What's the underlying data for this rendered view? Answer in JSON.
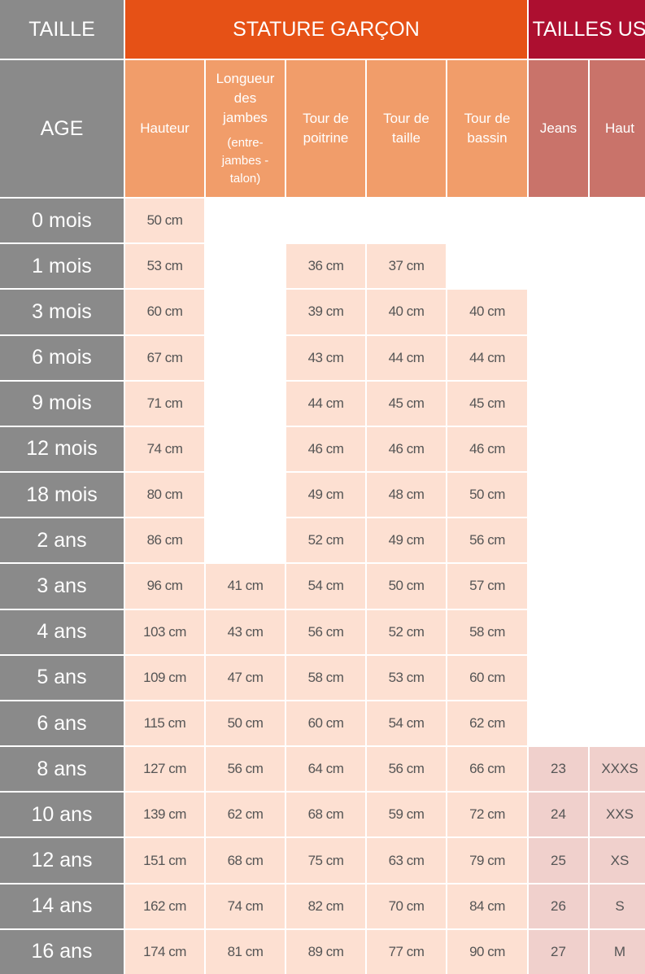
{
  "header": {
    "taille": "TAILLE",
    "stature": "STATURE GARÇON",
    "us": "TAILLES US"
  },
  "subheader": {
    "age": "AGE",
    "hauteur": "Hauteur",
    "longueur": "Longueur des jambes",
    "longueur_note": "(entre-jambes - talon)",
    "poitrine": "Tour de poitrine",
    "taille": "Tour de taille",
    "bassin": "Tour de bassin",
    "jeans": "Jeans",
    "haut": "Haut"
  },
  "colors": {
    "gray": "#8a8a8a",
    "orange": "#e65116",
    "orange_light": "#f19d6a",
    "red": "#ad0f30",
    "red_light": "#c9736a",
    "cell": "#fde0d2",
    "cell_us": "#f0d0cc"
  },
  "rows": [
    {
      "age": "0 mois",
      "values": [
        "50 cm",
        null,
        null,
        null,
        null,
        null,
        null
      ]
    },
    {
      "age": "1 mois",
      "values": [
        "53 cm",
        null,
        "36 cm",
        "37 cm",
        null,
        null,
        null
      ]
    },
    {
      "age": "3 mois",
      "values": [
        "60 cm",
        null,
        "39 cm",
        "40 cm",
        "40 cm",
        null,
        null
      ]
    },
    {
      "age": "6 mois",
      "values": [
        "67 cm",
        null,
        "43 cm",
        "44 cm",
        "44 cm",
        null,
        null
      ]
    },
    {
      "age": "9 mois",
      "values": [
        "71 cm",
        null,
        "44 cm",
        "45 cm",
        "45 cm",
        null,
        null
      ]
    },
    {
      "age": "12 mois",
      "values": [
        "74 cm",
        null,
        "46 cm",
        "46 cm",
        "46 cm",
        null,
        null
      ]
    },
    {
      "age": "18 mois",
      "values": [
        "80 cm",
        null,
        "49 cm",
        "48 cm",
        "50 cm",
        null,
        null
      ]
    },
    {
      "age": "2 ans",
      "values": [
        "86 cm",
        null,
        "52 cm",
        "49 cm",
        "56 cm",
        null,
        null
      ]
    },
    {
      "age": "3 ans",
      "values": [
        "96 cm",
        "41 cm",
        "54 cm",
        "50 cm",
        "57 cm",
        null,
        null
      ]
    },
    {
      "age": "4 ans",
      "values": [
        "103 cm",
        "43 cm",
        "56 cm",
        "52 cm",
        "58 cm",
        null,
        null
      ]
    },
    {
      "age": "5 ans",
      "values": [
        "109 cm",
        "47 cm",
        "58 cm",
        "53 cm",
        "60 cm",
        null,
        null
      ]
    },
    {
      "age": "6 ans",
      "values": [
        "115 cm",
        "50 cm",
        "60 cm",
        "54 cm",
        "62 cm",
        null,
        null
      ]
    },
    {
      "age": "8 ans",
      "values": [
        "127 cm",
        "56 cm",
        "64 cm",
        "56 cm",
        "66 cm",
        "23",
        "XXXS"
      ]
    },
    {
      "age": "10 ans",
      "values": [
        "139 cm",
        "62 cm",
        "68 cm",
        "59 cm",
        "72 cm",
        "24",
        "XXS"
      ]
    },
    {
      "age": "12 ans",
      "values": [
        "151 cm",
        "68 cm",
        "75 cm",
        "63 cm",
        "79 cm",
        "25",
        "XS"
      ]
    },
    {
      "age": "14 ans",
      "values": [
        "162 cm",
        "74 cm",
        "82 cm",
        "70 cm",
        "84 cm",
        "26",
        "S"
      ]
    },
    {
      "age": "16 ans",
      "values": [
        "174 cm",
        "81 cm",
        "89 cm",
        "77 cm",
        "90 cm",
        "27",
        "M"
      ]
    }
  ]
}
